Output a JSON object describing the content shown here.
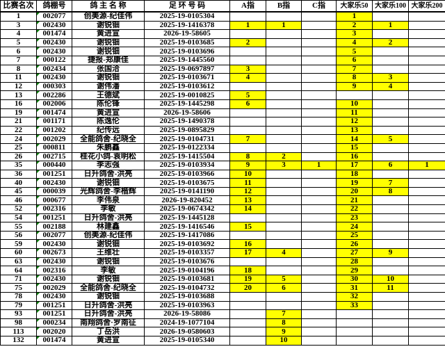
{
  "colors": {
    "highlight": "#FFFF00",
    "flag_triangle": "#008000",
    "grid": "#000000",
    "background": "#FFFFFF"
  },
  "table": {
    "headers": [
      "比赛名次",
      "鸽棚号",
      "鸽 主 名 称",
      "足 环 号 码",
      "A指",
      "B指",
      "C指",
      "大家乐50",
      "大家乐100",
      "大家乐200"
    ],
    "cell_names": [
      "race-rank-cell",
      "loft-number-cell",
      "owner-name-cell",
      "ring-number-cell",
      "a-index-cell",
      "b-index-cell",
      "c-index-cell",
      "dajiale50-cell",
      "dajiale100-cell",
      "dajiale200-cell"
    ],
    "rows": [
      [
        "1",
        "002077",
        "创美源-纪佳伟",
        "2025-19-0105304",
        "",
        "",
        "",
        "1",
        "",
        ""
      ],
      [
        "3",
        "002430",
        "谢锐钿",
        "2025-19-1416378",
        "1",
        "1",
        "",
        "2",
        "1",
        ""
      ],
      [
        "4",
        "001474",
        "黄进宣",
        "2026-19-58605",
        "",
        "",
        "",
        "3",
        "",
        ""
      ],
      [
        "5",
        "002430",
        "谢锐钿",
        "2025-19-0103685",
        "2",
        "",
        "",
        "4",
        "2",
        ""
      ],
      [
        "6",
        "002430",
        "谢锐钿",
        "2025-19-0103696",
        "",
        "",
        "",
        "5",
        "",
        ""
      ],
      [
        "7",
        "000122",
        "捷报-郑康佳",
        "2025-19-1445560",
        "",
        "",
        "",
        "6",
        "",
        ""
      ],
      [
        "8",
        "002434",
        "张国洽",
        "2025-19-0697897",
        "3",
        "",
        "",
        "7",
        "",
        ""
      ],
      [
        "11",
        "002430",
        "谢锐钿",
        "2025-19-0103671",
        "4",
        "",
        "",
        "8",
        "3",
        ""
      ],
      [
        "12",
        "000303",
        "谢伟潘",
        "2025-19-0103612",
        "",
        "",
        "",
        "9",
        "4",
        ""
      ],
      [
        "13",
        "002286",
        "王德斌",
        "2025-19-0010825",
        "5",
        "",
        "",
        "",
        "",
        ""
      ],
      [
        "16",
        "002006",
        "陈伦锋",
        "2025-19-1445298",
        "6",
        "",
        "",
        "10",
        "",
        ""
      ],
      [
        "19",
        "001474",
        "黄进宣",
        "2026-19-58606",
        "",
        "",
        "",
        "11",
        "",
        ""
      ],
      [
        "21",
        "001171",
        "陈逸伦",
        "2025-19-1490378",
        "",
        "",
        "",
        "12",
        "",
        ""
      ],
      [
        "22",
        "001202",
        "纪传远",
        "2025-19-0895829",
        "",
        "",
        "",
        "13",
        "",
        ""
      ],
      [
        "24",
        "002029",
        "全能鸽舍-纪晓全",
        "2025-19-0104731",
        "7",
        "",
        "",
        "14",
        "5",
        ""
      ],
      [
        "25",
        "000811",
        "朱鹏鑫",
        "2025-19-0122334",
        "",
        "",
        "",
        "15",
        "",
        ""
      ],
      [
        "26",
        "002715",
        "桂花小鸽-袁明松",
        "2025-19-1415504",
        "8",
        "2",
        "",
        "16",
        "",
        ""
      ],
      [
        "35",
        "000440",
        "李志强",
        "2025-19-0103934",
        "9",
        "3",
        "1",
        "17",
        "6",
        "1"
      ],
      [
        "36",
        "001251",
        "日升鸽舍-洪亮",
        "2025-19-0103966",
        "10",
        "",
        "",
        "18",
        "",
        ""
      ],
      [
        "40",
        "002430",
        "谢锐钿",
        "2025-19-0103675",
        "11",
        "",
        "",
        "19",
        "7",
        ""
      ],
      [
        "45",
        "000039",
        "光辉鸽舍-李楷辉",
        "2025-19-0141190",
        "12",
        "",
        "",
        "20",
        "8",
        ""
      ],
      [
        "46",
        "000677",
        "李伟泉",
        "2026-19-820452",
        "13",
        "",
        "",
        "21",
        "",
        ""
      ],
      [
        "52",
        "002316",
        "李敏",
        "2025-19-0674342",
        "14",
        "",
        "",
        "22",
        "",
        ""
      ],
      [
        "54",
        "001251",
        "日升鸽舍-洪亮",
        "2025-19-1445128",
        "",
        "",
        "",
        "23",
        "",
        ""
      ],
      [
        "55",
        "002188",
        "林建鑫",
        "2025-19-1416546",
        "15",
        "",
        "",
        "24",
        "",
        ""
      ],
      [
        "56",
        "002077",
        "创美源-纪佳伟",
        "2025-19-1417086",
        "",
        "",
        "",
        "25",
        "",
        ""
      ],
      [
        "59",
        "002430",
        "谢锐钿",
        "2025-19-0103692",
        "16",
        "",
        "",
        "26",
        "",
        ""
      ],
      [
        "60",
        "002673",
        "王维壮",
        "2025-19-0103357",
        "17",
        "4",
        "",
        "27",
        "9",
        ""
      ],
      [
        "63",
        "002430",
        "谢锐钿",
        "2025-19-0103676",
        "",
        "",
        "",
        "28",
        "",
        ""
      ],
      [
        "64",
        "002316",
        "李敏",
        "2025-19-0104196",
        "18",
        "",
        "",
        "29",
        "",
        ""
      ],
      [
        "71",
        "002430",
        "谢锐钿",
        "2025-19-0103681",
        "19",
        "5",
        "",
        "30",
        "10",
        ""
      ],
      [
        "75",
        "002029",
        "全能鸽舍-纪晓全",
        "2025-19-0104732",
        "20",
        "6",
        "",
        "31",
        "11",
        ""
      ],
      [
        "78",
        "002430",
        "谢锐钿",
        "2025-19-0103688",
        "",
        "",
        "",
        "32",
        "",
        ""
      ],
      [
        "79",
        "001251",
        "日升鸽舍-洪亮",
        "2025-19-0103963",
        "",
        "",
        "",
        "33",
        "",
        ""
      ],
      [
        "93",
        "001251",
        "日升鸽舍-洪亮",
        "2026-19-58086",
        "",
        "7",
        "",
        "",
        "",
        ""
      ],
      [
        "98",
        "000234",
        "南翔鸽舍·罗南征",
        "2024-19-1077104",
        "",
        "8",
        "",
        "",
        "",
        ""
      ],
      [
        "113",
        "002020",
        "丁岳洪",
        "2026-19-0580603",
        "",
        "9",
        "",
        "",
        "",
        ""
      ],
      [
        "132",
        "001474",
        "黄进宣",
        "2025-19-0105340",
        "",
        "10",
        "",
        "",
        "",
        ""
      ]
    ]
  }
}
